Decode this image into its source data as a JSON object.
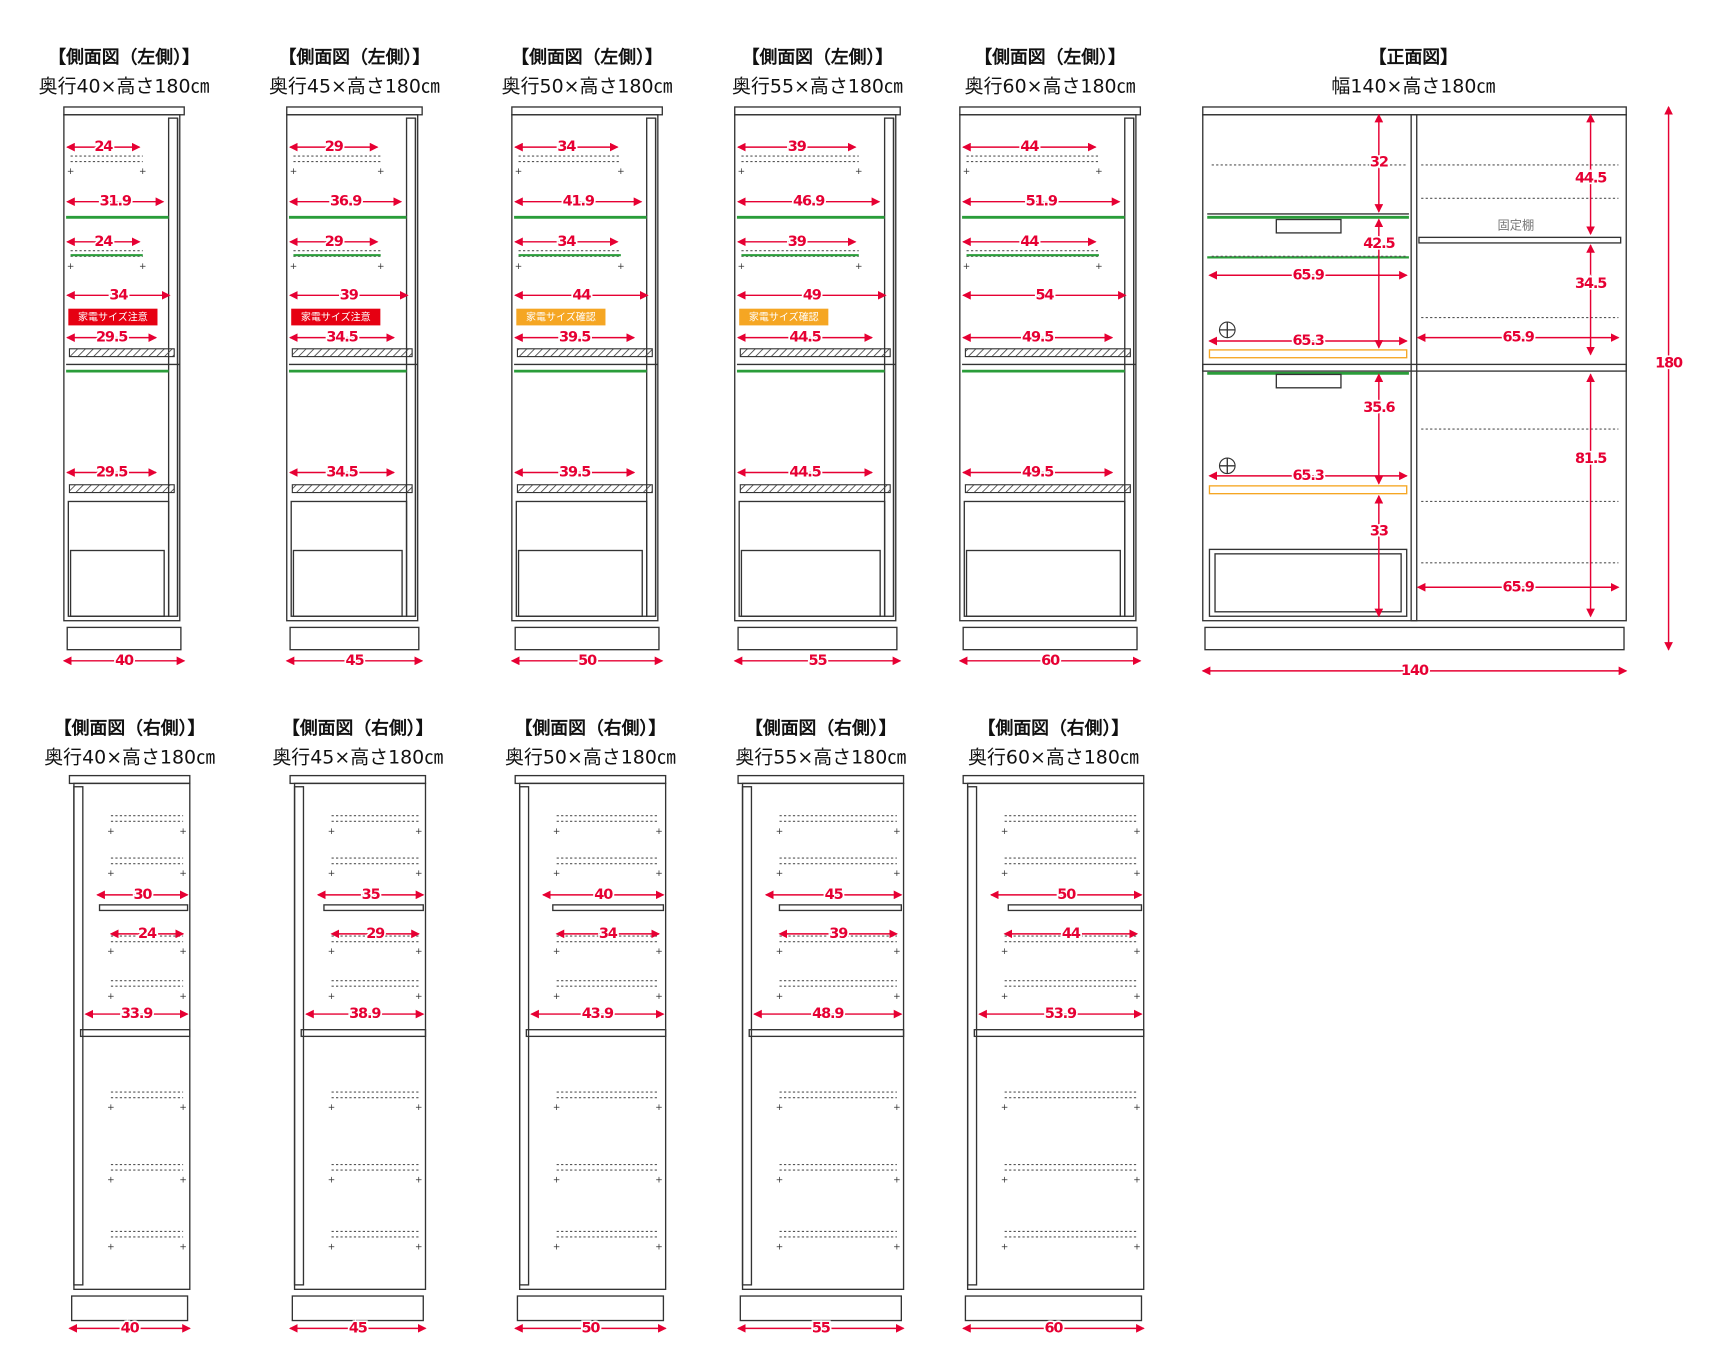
{
  "left_views": [
    {
      "title": "【側面図（左側）】",
      "subtitle": "奥行40×高さ180㎝",
      "depth": "40",
      "upper_inner": "24",
      "upper_full": "31.9",
      "mid_inner": "24",
      "mid_full": "34",
      "note": "家電サイズ注意",
      "note_color": "#e60012",
      "shelf_upper": "29.5",
      "shelf_lower": "29.5"
    },
    {
      "title": "【側面図（左側）】",
      "subtitle": "奥行45×高さ180㎝",
      "depth": "45",
      "upper_inner": "29",
      "upper_full": "36.9",
      "mid_inner": "29",
      "mid_full": "39",
      "note": "家電サイズ注意",
      "note_color": "#e60012",
      "shelf_upper": "34.5",
      "shelf_lower": "34.5"
    },
    {
      "title": "【側面図（左側）】",
      "subtitle": "奥行50×高さ180㎝",
      "depth": "50",
      "upper_inner": "34",
      "upper_full": "41.9",
      "mid_inner": "34",
      "mid_full": "44",
      "note": "家電サイズ確認",
      "note_color": "#f5a623",
      "shelf_upper": "39.5",
      "shelf_lower": "39.5"
    },
    {
      "title": "【側面図（左側）】",
      "subtitle": "奥行55×高さ180㎝",
      "depth": "55",
      "upper_inner": "39",
      "upper_full": "46.9",
      "mid_inner": "39",
      "mid_full": "49",
      "note": "家電サイズ確認",
      "note_color": "#f5a623",
      "shelf_upper": "44.5",
      "shelf_lower": "44.5"
    },
    {
      "title": "【側面図（左側）】",
      "subtitle": "奥行60×高さ180㎝",
      "depth": "60",
      "upper_inner": "44",
      "upper_full": "51.9",
      "mid_inner": "44",
      "mid_full": "54",
      "shelf_upper": "49.5",
      "shelf_lower": "49.5"
    }
  ],
  "front_view": {
    "title": "【正面図】",
    "subtitle": "幅140×高さ180㎝",
    "labels": {
      "top_left_height": "32",
      "top_right_height": "44.5",
      "fixed_shelf": "固定棚",
      "mid_left_height": "42.5",
      "mid_left_width": "65.9",
      "mid_right_height": "34.5",
      "low_left_width": "65.3",
      "mid_right_width": "65.9",
      "total_height": "180",
      "lower_left_height": "35.6",
      "lower_right_height": "81.5",
      "lower_left_width": "65.3",
      "drawer_height": "33",
      "lower_right_width": "65.9",
      "total_width": "140"
    }
  },
  "right_views": [
    {
      "title": "【側面図（右側）】",
      "subtitle": "奥行40×高さ180㎝",
      "depth": "40",
      "shelf": "30",
      "inner": "24",
      "full": "33.9"
    },
    {
      "title": "【側面図（右側）】",
      "subtitle": "奥行45×高さ180㎝",
      "depth": "45",
      "shelf": "35",
      "inner": "29",
      "full": "38.9"
    },
    {
      "title": "【側面図（右側）】",
      "subtitle": "奥行50×高さ180㎝",
      "depth": "50",
      "shelf": "40",
      "inner": "34",
      "full": "43.9"
    },
    {
      "title": "【側面図（右側）】",
      "subtitle": "奥行55×高さ180㎝",
      "depth": "55",
      "shelf": "45",
      "inner": "39",
      "full": "48.9"
    },
    {
      "title": "【側面図（右側）】",
      "subtitle": "奥行60×高さ180㎝",
      "depth": "60",
      "shelf": "50",
      "inner": "44",
      "full": "53.9"
    }
  ]
}
